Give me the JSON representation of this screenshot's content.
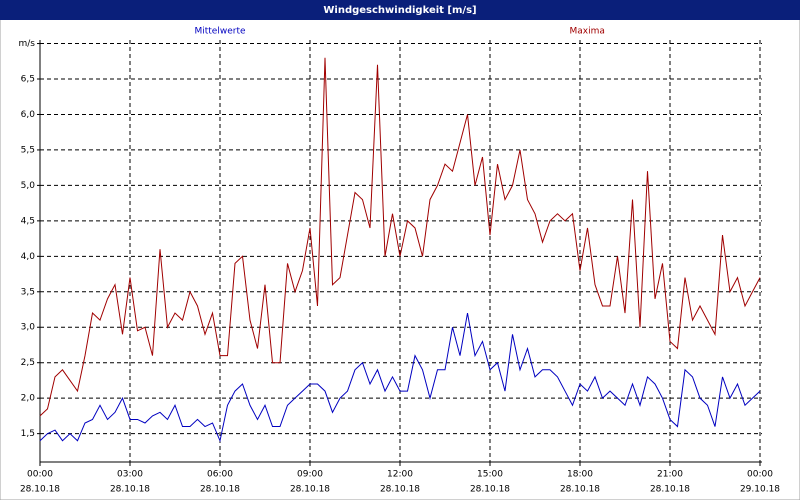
{
  "chart_data": {
    "type": "line",
    "title": "Windgeschwindigkeit [m/s]",
    "x": [
      0,
      0.25,
      0.5,
      0.75,
      1,
      1.25,
      1.5,
      1.75,
      2,
      2.25,
      2.5,
      2.75,
      3,
      3.25,
      3.5,
      3.75,
      4,
      4.25,
      4.5,
      4.75,
      5,
      5.25,
      5.5,
      5.75,
      6,
      6.25,
      6.5,
      6.75,
      7,
      7.25,
      7.5,
      7.75,
      8,
      8.25,
      8.5,
      8.75,
      9,
      9.25,
      9.5,
      9.75,
      10,
      10.25,
      10.5,
      10.75,
      11,
      11.25,
      11.5,
      11.75,
      12,
      12.25,
      12.5,
      12.75,
      13,
      13.25,
      13.5,
      13.75,
      14,
      14.25,
      14.5,
      14.75,
      15,
      15.25,
      15.5,
      15.75,
      16,
      16.25,
      16.5,
      16.75,
      17,
      17.25,
      17.5,
      17.75,
      18,
      18.25,
      18.5,
      18.75,
      19,
      19.25,
      19.5,
      19.75,
      20,
      20.25,
      20.5,
      20.75,
      21,
      21.25,
      21.5,
      21.75,
      22,
      22.25,
      22.5,
      22.75,
      23,
      23.25,
      23.5,
      23.75,
      24
    ],
    "series": [
      {
        "name": "Mittelwerte",
        "color": "#0000c0",
        "values": [
          1.4,
          1.5,
          1.55,
          1.4,
          1.5,
          1.4,
          1.65,
          1.7,
          1.9,
          1.7,
          1.8,
          2.0,
          1.7,
          1.7,
          1.65,
          1.75,
          1.8,
          1.7,
          1.9,
          1.6,
          1.6,
          1.7,
          1.6,
          1.65,
          1.4,
          1.9,
          2.1,
          2.2,
          1.9,
          1.7,
          1.9,
          1.6,
          1.6,
          1.9,
          2.0,
          2.1,
          2.2,
          2.2,
          2.1,
          1.8,
          2.0,
          2.1,
          2.4,
          2.5,
          2.2,
          2.4,
          2.1,
          2.3,
          2.1,
          2.1,
          2.6,
          2.4,
          2.0,
          2.4,
          2.4,
          3.0,
          2.6,
          3.2,
          2.6,
          2.8,
          2.4,
          2.5,
          2.1,
          2.9,
          2.4,
          2.7,
          2.3,
          2.4,
          2.4,
          2.3,
          2.1,
          1.9,
          2.2,
          2.1,
          2.3,
          2.0,
          2.1,
          2.0,
          1.9,
          2.2,
          1.9,
          2.3,
          2.2,
          2.0,
          1.7,
          1.6,
          2.4,
          2.3,
          2.0,
          1.9,
          1.6,
          2.3,
          2.0,
          2.2,
          1.9,
          2.0,
          2.1
        ]
      },
      {
        "name": "Maxima",
        "color": "#a00000",
        "values": [
          1.75,
          1.85,
          2.3,
          2.4,
          2.25,
          2.1,
          2.6,
          3.2,
          3.1,
          3.4,
          3.6,
          2.9,
          3.7,
          2.95,
          3.0,
          2.6,
          4.1,
          3.0,
          3.2,
          3.1,
          3.5,
          3.3,
          2.9,
          3.2,
          2.6,
          2.6,
          3.9,
          4.0,
          3.1,
          2.7,
          3.6,
          2.5,
          2.5,
          3.9,
          3.5,
          3.8,
          4.4,
          3.3,
          6.8,
          3.6,
          3.7,
          4.3,
          4.9,
          4.8,
          4.4,
          6.7,
          4.0,
          4.6,
          4.0,
          4.5,
          4.4,
          4.0,
          4.8,
          5.0,
          5.3,
          5.2,
          5.6,
          6.0,
          5.0,
          5.4,
          4.3,
          5.3,
          4.8,
          5.0,
          5.5,
          4.8,
          4.6,
          4.2,
          4.5,
          4.6,
          4.5,
          4.6,
          3.8,
          4.4,
          3.6,
          3.3,
          3.3,
          4.0,
          3.2,
          4.8,
          3.0,
          5.2,
          3.4,
          3.9,
          2.8,
          2.7,
          3.7,
          3.1,
          3.3,
          3.1,
          2.9,
          4.3,
          3.5,
          3.7,
          3.3,
          3.5,
          3.7
        ]
      }
    ],
    "xlim": [
      0,
      24
    ],
    "xticks": [
      {
        "value": 0,
        "label": "00:00"
      },
      {
        "value": 3,
        "label": "03:00"
      },
      {
        "value": 6,
        "label": "06:00"
      },
      {
        "value": 9,
        "label": "09:00"
      },
      {
        "value": 12,
        "label": "12:00"
      },
      {
        "value": 15,
        "label": "15:00"
      },
      {
        "value": 18,
        "label": "18:00"
      },
      {
        "value": 21,
        "label": "21:00"
      },
      {
        "value": 24,
        "label": "00:00"
      }
    ],
    "xtick_dates": [
      "28.10.18",
      "28.10.18",
      "28.10.18",
      "28.10.18",
      "28.10.18",
      "28.10.18",
      "28.10.18",
      "28.10.18",
      "29.10.18"
    ],
    "ylim": [
      1.1,
      7.05
    ],
    "yticks": [
      {
        "value": 1.5,
        "label": "1,5"
      },
      {
        "value": 2,
        "label": "2,0"
      },
      {
        "value": 2.5,
        "label": "2,5"
      },
      {
        "value": 3,
        "label": "3,0"
      },
      {
        "value": 3.5,
        "label": "3,5"
      },
      {
        "value": 4,
        "label": "4,0"
      },
      {
        "value": 4.5,
        "label": "4,5"
      },
      {
        "value": 5,
        "label": "5,0"
      },
      {
        "value": 5.5,
        "label": "5,5"
      },
      {
        "value": 6,
        "label": "6,0"
      },
      {
        "value": 6.5,
        "label": "6,5"
      },
      {
        "value": 7,
        "label": "m/s"
      }
    ],
    "grid": true
  }
}
